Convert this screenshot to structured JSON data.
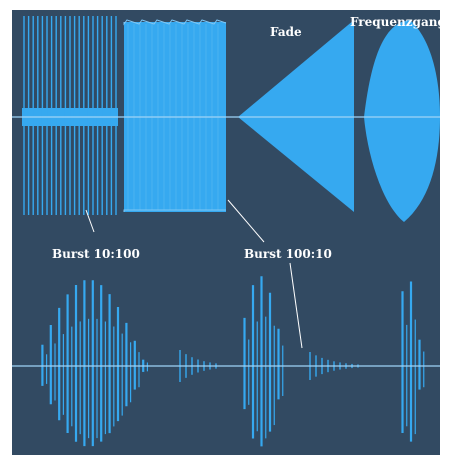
{
  "colors": {
    "background": "#324a62",
    "signal": "#36a9f0",
    "signal_light": "#7fc6f4",
    "label": "#ffffff"
  },
  "labels": {
    "fade": "Fade",
    "frequency_response": "Frequenzgang",
    "burst_10_100": "Burst 10:100",
    "burst_100_10": "Burst 100:10"
  }
}
